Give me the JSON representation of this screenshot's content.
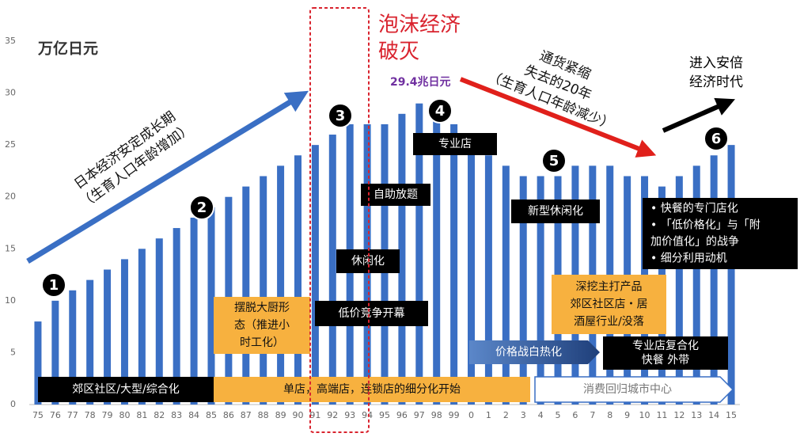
{
  "chart_data": {
    "type": "bar",
    "y_label": "万亿日元",
    "categories": [
      "75",
      "76",
      "77",
      "78",
      "79",
      "80",
      "81",
      "82",
      "83",
      "84",
      "85",
      "86",
      "87",
      "88",
      "89",
      "90",
      "91",
      "92",
      "93",
      "94",
      "95",
      "96",
      "97",
      "98",
      "99",
      "0",
      "1",
      "2",
      "3",
      "4",
      "5",
      "6",
      "7",
      "8",
      "9",
      "10",
      "11",
      "12",
      "13",
      "14",
      "15"
    ],
    "values": [
      8,
      10,
      11,
      12,
      13,
      14,
      15,
      16,
      17,
      18,
      19,
      20,
      21,
      22,
      23,
      24,
      25,
      26,
      27,
      27,
      27,
      28,
      29,
      29,
      27,
      26,
      24,
      23,
      22,
      22,
      22,
      23,
      23,
      23,
      22,
      22,
      21,
      22,
      23,
      24,
      25
    ],
    "color": "#3a6fc4",
    "ylim": [
      0,
      35
    ],
    "yticks": [
      0,
      5,
      10,
      15,
      20,
      25,
      30,
      35
    ],
    "grid": false,
    "annotations": [
      {
        "lines": [
          "泡沫经济",
          "破灭"
        ]
      },
      {
        "lines": [
          "29.4兆日元"
        ]
      },
      {
        "lines": [
          "日本经济安定成长期",
          "（生育人口年龄增加）"
        ]
      },
      {
        "lines": [
          "通货紧缩",
          "失去的20年",
          "（生育人口年龄减少）"
        ]
      },
      {
        "lines": [
          "进入安倍",
          "经济时代"
        ]
      },
      {
        "lines": [
          "1"
        ]
      },
      {
        "lines": [
          "2"
        ]
      },
      {
        "lines": [
          "3"
        ]
      },
      {
        "lines": [
          "4"
        ]
      },
      {
        "lines": [
          "5"
        ]
      },
      {
        "lines": [
          "6"
        ]
      },
      {
        "lines": [
          "郊区社区/大型/综合化"
        ]
      },
      {
        "lines": [
          "低价竞争开幕"
        ]
      },
      {
        "lines": [
          "休闲化"
        ]
      },
      {
        "lines": [
          "自助放题"
        ]
      },
      {
        "lines": [
          "专业店"
        ]
      },
      {
        "lines": [
          "新型休闲化"
        ]
      },
      {
        "lines": [
          "专业店复合化",
          "快餐 外带"
        ]
      },
      {
        "lines": [
          "• 快餐的专门店化",
          "• 「低价格化」与「附",
          "  加价值化」的战争",
          "• 细分利用动机"
        ]
      },
      {
        "lines": [
          "摆脱大厨形",
          "态（推进小",
          "时工化）"
        ]
      },
      {
        "lines": [
          "单店，高端店，连锁店的细分化开始"
        ]
      },
      {
        "lines": [
          "深挖主打产品",
          "郊区社区店・居",
          "酒屋行业/没落"
        ]
      },
      {
        "lines": [
          "价格战白热化"
        ]
      },
      {
        "lines": [
          "消费回归城市中心"
        ]
      }
    ]
  }
}
